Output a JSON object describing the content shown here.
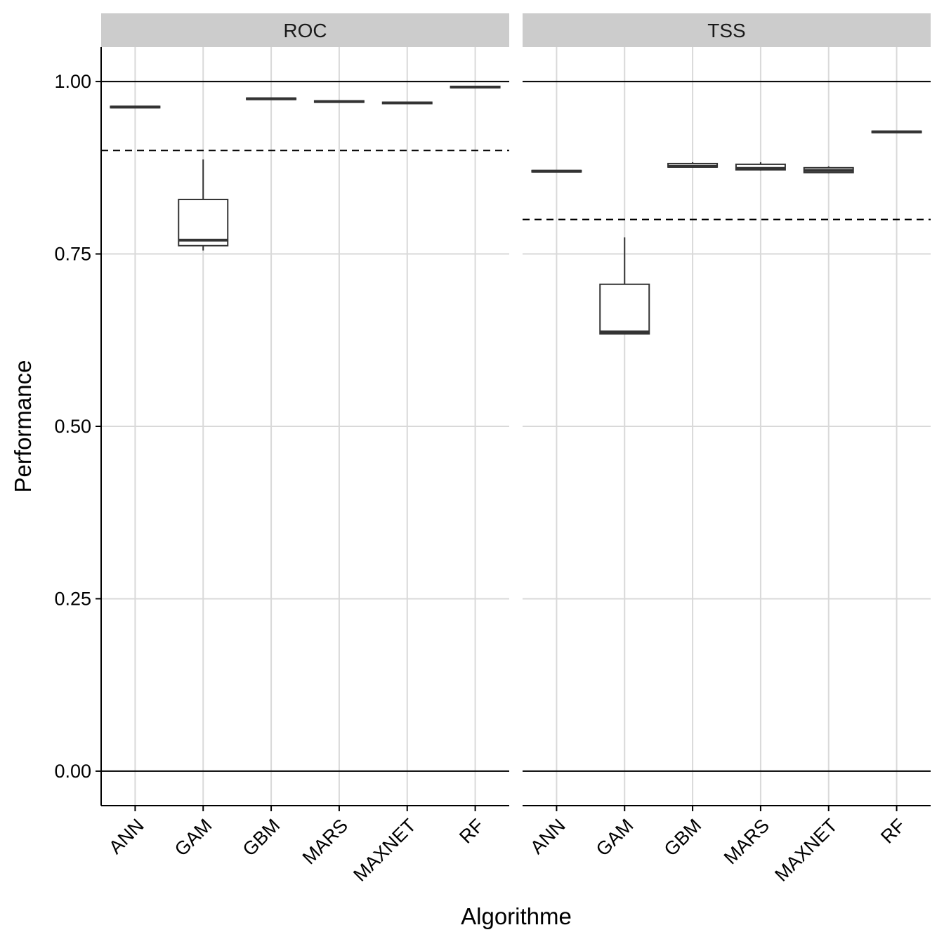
{
  "chart_data": {
    "type": "boxplot",
    "xlabel": "Algorithme",
    "ylabel": "Performance",
    "ylim": [
      -0.05,
      1.05
    ],
    "yticks": [
      0.0,
      0.25,
      0.5,
      0.75,
      1.0
    ],
    "ytick_labels": [
      "0.00",
      "0.25",
      "0.50",
      "0.75",
      "1.00"
    ],
    "categories": [
      "ANN",
      "GAM",
      "GBM",
      "MARS",
      "MAXNET",
      "RF"
    ],
    "grid": true,
    "reference_lines": {
      "solid": [
        0.0,
        1.0
      ]
    },
    "panels": [
      {
        "label": "ROC",
        "threshold": 0.9,
        "boxes": [
          {
            "category": "ANN",
            "min": 0.962,
            "q1": 0.962,
            "median": 0.963,
            "q3": 0.964,
            "max": 0.964
          },
          {
            "category": "GAM",
            "min": 0.755,
            "q1": 0.762,
            "median": 0.77,
            "q3": 0.829,
            "max": 0.887
          },
          {
            "category": "GBM",
            "min": 0.974,
            "q1": 0.974,
            "median": 0.975,
            "q3": 0.976,
            "max": 0.976
          },
          {
            "category": "MARS",
            "min": 0.97,
            "q1": 0.97,
            "median": 0.971,
            "q3": 0.972,
            "max": 0.972
          },
          {
            "category": "MAXNET",
            "min": 0.968,
            "q1": 0.968,
            "median": 0.969,
            "q3": 0.97,
            "max": 0.97
          },
          {
            "category": "RF",
            "min": 0.991,
            "q1": 0.991,
            "median": 0.992,
            "q3": 0.993,
            "max": 0.993
          }
        ]
      },
      {
        "label": "TSS",
        "threshold": 0.8,
        "boxes": [
          {
            "category": "ANN",
            "min": 0.869,
            "q1": 0.869,
            "median": 0.87,
            "q3": 0.871,
            "max": 0.871
          },
          {
            "category": "GAM",
            "min": 0.634,
            "q1": 0.634,
            "median": 0.637,
            "q3": 0.706,
            "max": 0.774
          },
          {
            "category": "GBM",
            "min": 0.875,
            "q1": 0.876,
            "median": 0.877,
            "q3": 0.881,
            "max": 0.883
          },
          {
            "category": "MARS",
            "min": 0.871,
            "q1": 0.872,
            "median": 0.874,
            "q3": 0.88,
            "max": 0.883
          },
          {
            "category": "MAXNET",
            "min": 0.867,
            "q1": 0.868,
            "median": 0.871,
            "q3": 0.875,
            "max": 0.877
          },
          {
            "category": "RF",
            "min": 0.926,
            "q1": 0.926,
            "median": 0.927,
            "q3": 0.928,
            "max": 0.928
          }
        ]
      }
    ]
  },
  "colors": {
    "strip": "#cccccc",
    "grid": "#d9d9d9",
    "box": "#333333",
    "axis": "#000000"
  }
}
